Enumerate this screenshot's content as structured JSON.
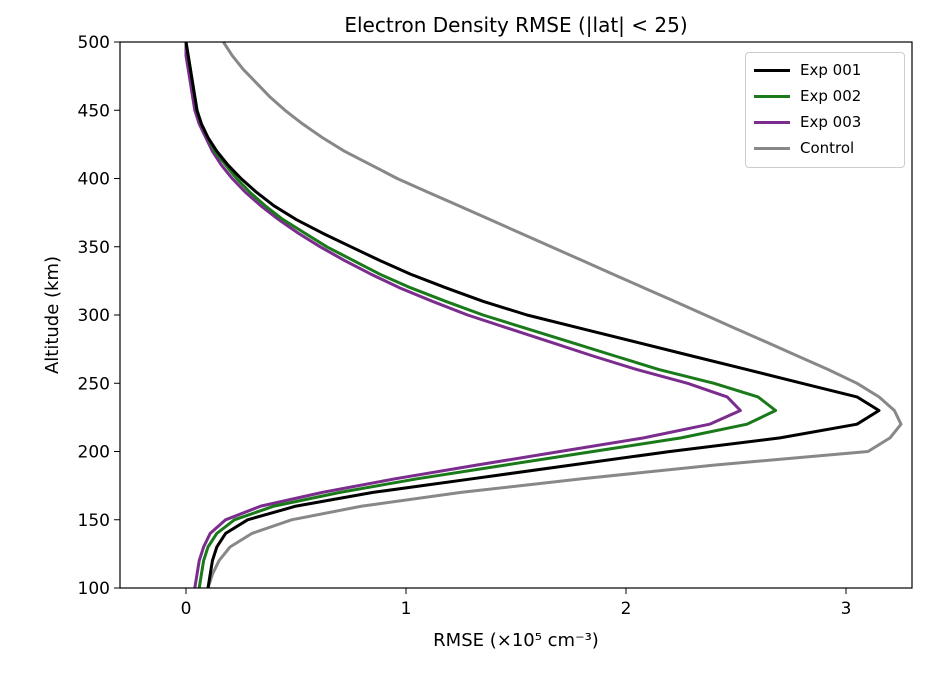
{
  "chart_data": {
    "type": "line",
    "title": "Electron Density RMSE (|lat| < 25)",
    "xlabel": "RMSE (×10⁵ cm⁻³)",
    "ylabel": "Altitude (km)",
    "xlim": [
      -0.3,
      3.3
    ],
    "ylim": [
      100,
      500
    ],
    "xticks": [
      0,
      1,
      2,
      3
    ],
    "yticks": [
      100,
      150,
      200,
      250,
      300,
      350,
      400,
      450,
      500
    ],
    "grid": false,
    "legend_position": "top-right",
    "y": [
      100,
      110,
      120,
      130,
      140,
      150,
      160,
      170,
      180,
      190,
      200,
      210,
      220,
      230,
      240,
      250,
      260,
      270,
      280,
      290,
      300,
      310,
      320,
      330,
      340,
      350,
      360,
      370,
      380,
      390,
      400,
      410,
      420,
      430,
      440,
      450,
      460,
      470,
      480,
      490,
      500
    ],
    "series": [
      {
        "name": "Exp 001",
        "color": "#000000",
        "x": [
          0.1,
          0.11,
          0.12,
          0.14,
          0.18,
          0.28,
          0.5,
          0.85,
          1.3,
          1.75,
          2.2,
          2.7,
          3.05,
          3.15,
          3.05,
          2.8,
          2.55,
          2.3,
          2.05,
          1.8,
          1.55,
          1.35,
          1.18,
          1.02,
          0.88,
          0.75,
          0.62,
          0.5,
          0.4,
          0.32,
          0.25,
          0.19,
          0.14,
          0.1,
          0.07,
          0.05,
          0.04,
          0.03,
          0.02,
          0.01,
          0.0
        ]
      },
      {
        "name": "Exp 002",
        "color": "#1a7a1a",
        "x": [
          0.06,
          0.07,
          0.08,
          0.1,
          0.14,
          0.22,
          0.4,
          0.7,
          1.05,
          1.45,
          1.85,
          2.25,
          2.55,
          2.68,
          2.6,
          2.4,
          2.15,
          1.95,
          1.75,
          1.55,
          1.35,
          1.18,
          1.02,
          0.88,
          0.76,
          0.64,
          0.54,
          0.44,
          0.36,
          0.29,
          0.23,
          0.18,
          0.13,
          0.1,
          0.07,
          0.05,
          0.04,
          0.03,
          0.02,
          0.01,
          0.0
        ]
      },
      {
        "name": "Exp 003",
        "color": "#7b2d8e",
        "x": [
          0.04,
          0.05,
          0.06,
          0.08,
          0.11,
          0.18,
          0.34,
          0.62,
          0.95,
          1.32,
          1.7,
          2.08,
          2.38,
          2.52,
          2.46,
          2.28,
          2.05,
          1.85,
          1.66,
          1.47,
          1.28,
          1.12,
          0.97,
          0.84,
          0.72,
          0.61,
          0.51,
          0.42,
          0.34,
          0.27,
          0.21,
          0.16,
          0.12,
          0.09,
          0.06,
          0.04,
          0.03,
          0.02,
          0.01,
          0.0,
          0.0
        ]
      },
      {
        "name": "Control",
        "color": "#888888",
        "x": [
          0.1,
          0.12,
          0.15,
          0.2,
          0.3,
          0.48,
          0.8,
          1.25,
          1.8,
          2.4,
          3.1,
          3.2,
          3.25,
          3.22,
          3.15,
          3.05,
          2.92,
          2.78,
          2.64,
          2.5,
          2.36,
          2.22,
          2.08,
          1.94,
          1.8,
          1.66,
          1.52,
          1.38,
          1.24,
          1.1,
          0.96,
          0.84,
          0.72,
          0.62,
          0.53,
          0.45,
          0.38,
          0.32,
          0.26,
          0.21,
          0.17
        ]
      }
    ]
  }
}
